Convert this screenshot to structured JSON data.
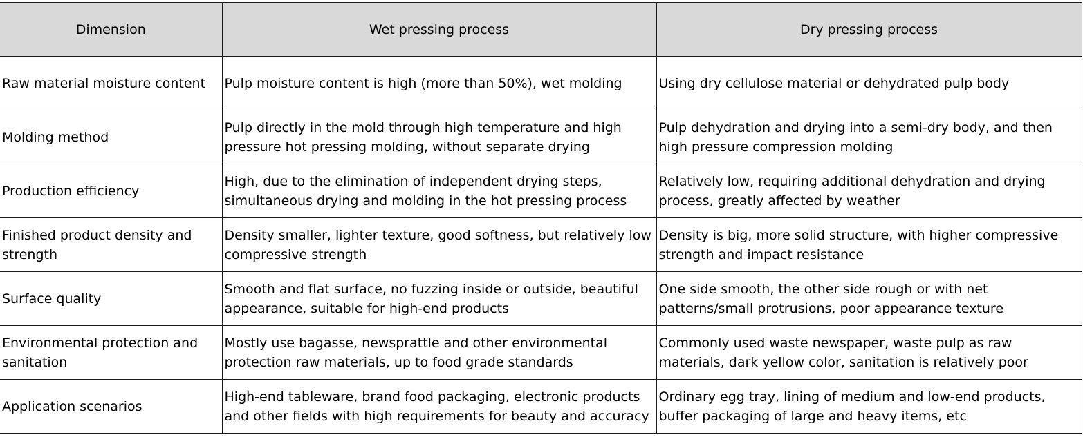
{
  "table": {
    "headers": [
      "Dimension",
      "Wet pressing process",
      "Dry pressing process"
    ],
    "rows": [
      [
        "Raw material moisture content",
        "Pulp moisture content is high (more than 50%), wet molding",
        "Using dry cellulose material or dehydrated pulp body"
      ],
      [
        "Molding method",
        "Pulp directly in the mold through high temperature and high pressure hot pressing molding, without separate drying",
        "Pulp dehydration and drying into a semi-dry body, and then high pressure compression molding"
      ],
      [
        "Production efficiency",
        "High, due to the elimination of independent drying steps, simultaneous drying and molding in the hot pressing process",
        "Relatively low, requiring additional dehydration and drying process, greatly affected by weather"
      ],
      [
        "Finished product density and strength",
        "Density smaller, lighter texture, good softness, but relatively low compressive strength",
        "Density is big, more solid structure, with higher compressive strength and impact resistance"
      ],
      [
        "Surface quality",
        "Smooth and flat surface, no fuzzing inside or outside, beautiful appearance, suitable for high-end products",
        "One side smooth, the other side rough or with net patterns/small protrusions, poor appearance texture"
      ],
      [
        "Environmental protection and sanitation",
        "Mostly use bagasse, newsprattle and other environmental protection raw materials, up to food grade standards",
        "Commonly used waste newspaper, waste pulp as raw materials, dark yellow color, sanitation is relatively poor"
      ],
      [
        "Application scenarios",
        "High-end tableware, brand food packaging, electronic products and other fields with high requirements for beauty and accuracy",
        "Ordinary egg tray, lining of medium and low-end products, buffer packaging of large and heavy items, etc"
      ]
    ]
  }
}
